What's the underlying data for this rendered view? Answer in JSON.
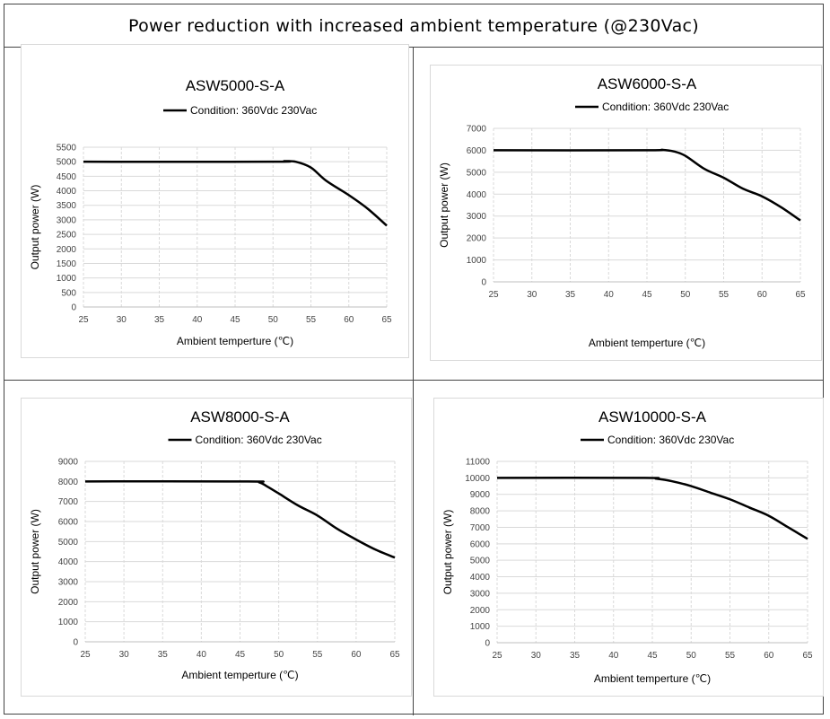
{
  "page_title": "Power reduction with increased ambient temperature (@230Vac)",
  "chart_data": [
    {
      "type": "line",
      "title": "ASW5000-S-A",
      "xlabel": "Ambient temperture (℃)",
      "ylabel": "Output power (W)",
      "xlim": [
        25,
        65
      ],
      "ylim": [
        0,
        5500
      ],
      "xticks": [
        25,
        30,
        35,
        40,
        45,
        50,
        55,
        60,
        65
      ],
      "yticks": [
        0,
        500,
        1000,
        1500,
        2000,
        2500,
        3000,
        3500,
        4000,
        4500,
        5000,
        5500
      ],
      "legend_position": "top",
      "grid": true,
      "series": [
        {
          "name": "Condition: 360Vdc 230Vac",
          "x": [
            25,
            50,
            51.5,
            53,
            55,
            57,
            60,
            62.5,
            65
          ],
          "y": [
            5000,
            5000,
            5020,
            5000,
            4800,
            4350,
            3850,
            3380,
            2800
          ]
        }
      ]
    },
    {
      "type": "line",
      "title": "ASW6000-S-A",
      "xlabel": "Ambient temperture (℃)",
      "ylabel": "Output power (W)",
      "xlim": [
        25,
        65
      ],
      "ylim": [
        0,
        7000
      ],
      "xticks": [
        25,
        30,
        35,
        40,
        45,
        50,
        55,
        60,
        65
      ],
      "yticks": [
        0,
        1000,
        2000,
        3000,
        4000,
        5000,
        6000,
        7000
      ],
      "legend_position": "top",
      "grid": true,
      "series": [
        {
          "name": "Condition: 360Vdc 230Vac",
          "x": [
            25,
            45,
            47,
            48.5,
            50,
            52.5,
            55,
            57.5,
            60,
            62.5,
            65
          ],
          "y": [
            6000,
            6000,
            6020,
            5950,
            5750,
            5150,
            4750,
            4250,
            3900,
            3400,
            2800
          ]
        }
      ]
    },
    {
      "type": "line",
      "title": "ASW8000-S-A",
      "xlabel": "Ambient temperture (℃)",
      "ylabel": "Output power (W)",
      "xlim": [
        25,
        65
      ],
      "ylim": [
        0,
        9000
      ],
      "xticks": [
        25,
        30,
        35,
        40,
        45,
        50,
        55,
        60,
        65
      ],
      "yticks": [
        0,
        1000,
        2000,
        3000,
        4000,
        5000,
        6000,
        7000,
        8000,
        9000
      ],
      "legend_position": "top",
      "grid": true,
      "series": [
        {
          "name": "Condition: 360Vdc 230Vac",
          "x": [
            25,
            46,
            47.5,
            48.5,
            50,
            52.5,
            55,
            57.5,
            60,
            62.5,
            65
          ],
          "y": [
            8000,
            8000,
            7950,
            7750,
            7400,
            6800,
            6300,
            5650,
            5100,
            4600,
            4200
          ]
        }
      ]
    },
    {
      "type": "line",
      "title": "ASW10000-S-A",
      "xlabel": "Ambient temperture (℃)",
      "ylabel": "Output power (W)",
      "xlim": [
        25,
        65
      ],
      "ylim": [
        0,
        11000
      ],
      "xticks": [
        25,
        30,
        35,
        40,
        45,
        50,
        55,
        60,
        65
      ],
      "yticks": [
        0,
        1000,
        2000,
        3000,
        4000,
        5000,
        6000,
        7000,
        8000,
        9000,
        10000,
        11000
      ],
      "legend_position": "top",
      "grid": true,
      "series": [
        {
          "name": "Condition: 360Vdc 230Vac",
          "x": [
            25,
            44,
            45.5,
            47.5,
            50,
            52.5,
            55,
            57.5,
            60,
            62.5,
            65
          ],
          "y": [
            10000,
            10000,
            9950,
            9800,
            9500,
            9100,
            8700,
            8200,
            7700,
            7000,
            6300
          ]
        }
      ]
    }
  ]
}
